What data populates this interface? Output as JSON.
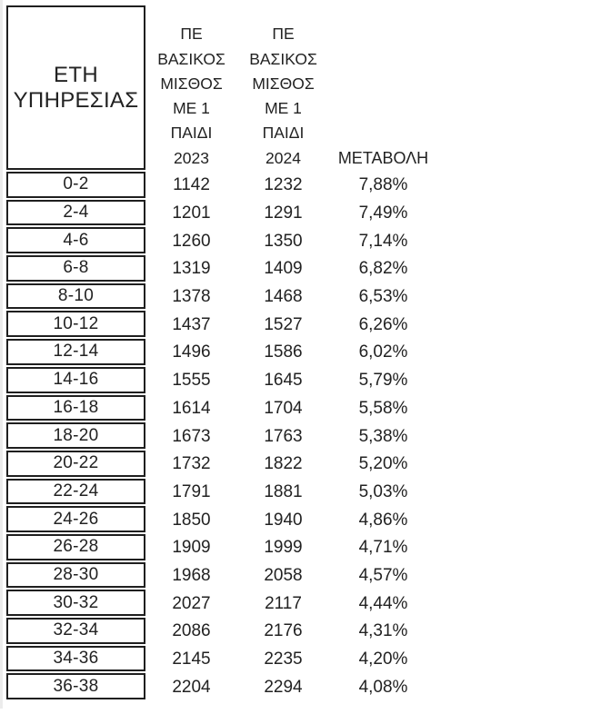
{
  "colors": {
    "background": "#ffffff",
    "text": "#222222",
    "border": "#1f1f1f",
    "page_edge": "#ececec"
  },
  "table": {
    "service_years_header_line1": "ΕΤΗ",
    "service_years_header_line2": "ΥΠΗΡΕΣΙΑΣ",
    "col_2023_header_lines": [
      "ΠΕ",
      "ΒΑΣΙΚΟΣ",
      "ΜΙΣΘΟΣ",
      "ΜΕ 1",
      "ΠΑΙΔΙ",
      "2023"
    ],
    "col_2024_header_lines": [
      "ΠΕ",
      "ΒΑΣΙΚΟΣ",
      "ΜΙΣΘΟΣ",
      "ΜΕ 1",
      "ΠΑΙΔΙ",
      "2024"
    ],
    "change_header": "ΜΕΤΑΒΟΛΗ",
    "rows": [
      {
        "years": "0-2",
        "salary_2023": "1142",
        "salary_2024": "1232",
        "change": "7,88%"
      },
      {
        "years": "2-4",
        "salary_2023": "1201",
        "salary_2024": "1291",
        "change": "7,49%"
      },
      {
        "years": "4-6",
        "salary_2023": "1260",
        "salary_2024": "1350",
        "change": "7,14%"
      },
      {
        "years": "6-8",
        "salary_2023": "1319",
        "salary_2024": "1409",
        "change": "6,82%"
      },
      {
        "years": "8-10",
        "salary_2023": "1378",
        "salary_2024": "1468",
        "change": "6,53%"
      },
      {
        "years": "10-12",
        "salary_2023": "1437",
        "salary_2024": "1527",
        "change": "6,26%"
      },
      {
        "years": "12-14",
        "salary_2023": "1496",
        "salary_2024": "1586",
        "change": "6,02%"
      },
      {
        "years": "14-16",
        "salary_2023": "1555",
        "salary_2024": "1645",
        "change": "5,79%"
      },
      {
        "years": "16-18",
        "salary_2023": "1614",
        "salary_2024": "1704",
        "change": "5,58%"
      },
      {
        "years": "18-20",
        "salary_2023": "1673",
        "salary_2024": "1763",
        "change": "5,38%"
      },
      {
        "years": "20-22",
        "salary_2023": "1732",
        "salary_2024": "1822",
        "change": "5,20%"
      },
      {
        "years": "22-24",
        "salary_2023": "1791",
        "salary_2024": "1881",
        "change": "5,03%"
      },
      {
        "years": "24-26",
        "salary_2023": "1850",
        "salary_2024": "1940",
        "change": "4,86%"
      },
      {
        "years": "26-28",
        "salary_2023": "1909",
        "salary_2024": "1999",
        "change": "4,71%"
      },
      {
        "years": "28-30",
        "salary_2023": "1968",
        "salary_2024": "2058",
        "change": "4,57%"
      },
      {
        "years": "30-32",
        "salary_2023": "2027",
        "salary_2024": "2117",
        "change": "4,44%"
      },
      {
        "years": "32-34",
        "salary_2023": "2086",
        "salary_2024": "2176",
        "change": "4,31%"
      },
      {
        "years": "34-36",
        "salary_2023": "2145",
        "salary_2024": "2235",
        "change": "4,20%"
      },
      {
        "years": "36-38",
        "salary_2023": "2204",
        "salary_2024": "2294",
        "change": "4,08%"
      }
    ]
  },
  "chart_data": {
    "type": "table",
    "columns": [
      "ΕΤΗ ΥΠΗΡΕΣΙΑΣ",
      "ΠΕ ΒΑΣΙΚΟΣ ΜΙΣΘΟΣ ΜΕ 1 ΠΑΙΔΙ 2023",
      "ΠΕ ΒΑΣΙΚΟΣ ΜΙΣΘΟΣ ΜΕ 1 ΠΑΙΔΙ 2024",
      "ΜΕΤΑΒΟΛΗ"
    ],
    "rows": [
      [
        "0-2",
        1142,
        1232,
        "7,88%"
      ],
      [
        "2-4",
        1201,
        1291,
        "7,49%"
      ],
      [
        "4-6",
        1260,
        1350,
        "7,14%"
      ],
      [
        "6-8",
        1319,
        1409,
        "6,82%"
      ],
      [
        "8-10",
        1378,
        1468,
        "6,53%"
      ],
      [
        "10-12",
        1437,
        1527,
        "6,26%"
      ],
      [
        "12-14",
        1496,
        1586,
        "6,02%"
      ],
      [
        "14-16",
        1555,
        1645,
        "5,79%"
      ],
      [
        "16-18",
        1614,
        1704,
        "5,58%"
      ],
      [
        "18-20",
        1673,
        1763,
        "5,38%"
      ],
      [
        "20-22",
        1732,
        1822,
        "5,20%"
      ],
      [
        "22-24",
        1791,
        1881,
        "5,03%"
      ],
      [
        "24-26",
        1850,
        1940,
        "4,86%"
      ],
      [
        "26-28",
        1909,
        1999,
        "4,71%"
      ],
      [
        "28-30",
        1968,
        2058,
        "4,57%"
      ],
      [
        "30-32",
        2027,
        2117,
        "4,44%"
      ],
      [
        "32-34",
        2086,
        2176,
        "4,31%"
      ],
      [
        "34-36",
        2145,
        2235,
        "4,20%"
      ],
      [
        "36-38",
        2204,
        2294,
        "4,08%"
      ]
    ]
  }
}
